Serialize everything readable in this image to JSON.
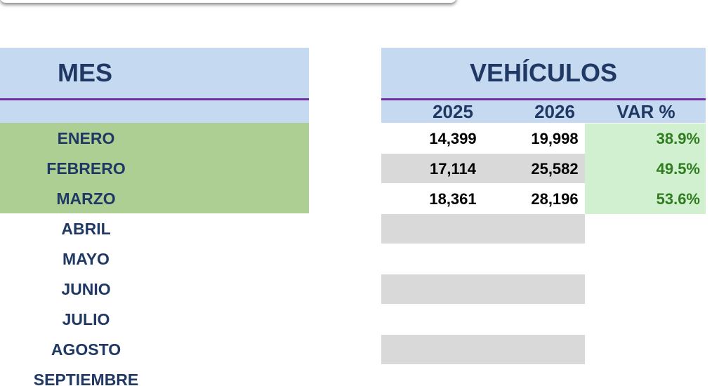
{
  "months_table": {
    "header": "MES",
    "months": [
      "ENERO",
      "FEBRERO",
      "MARZO",
      "ABRIL",
      "MAYO",
      "JUNIO",
      "JULIO",
      "AGOSTO",
      "SEPTIEMBRE"
    ]
  },
  "vehicles_table": {
    "header": "VEHÍCULOS",
    "columns": [
      "2025",
      "2026",
      "VAR %"
    ],
    "rows": [
      [
        "14,399",
        "19,998",
        "38.9%"
      ],
      [
        "17,114",
        "25,582",
        "49.5%"
      ],
      [
        "18,361",
        "28,196",
        "53.6%"
      ]
    ]
  }
}
